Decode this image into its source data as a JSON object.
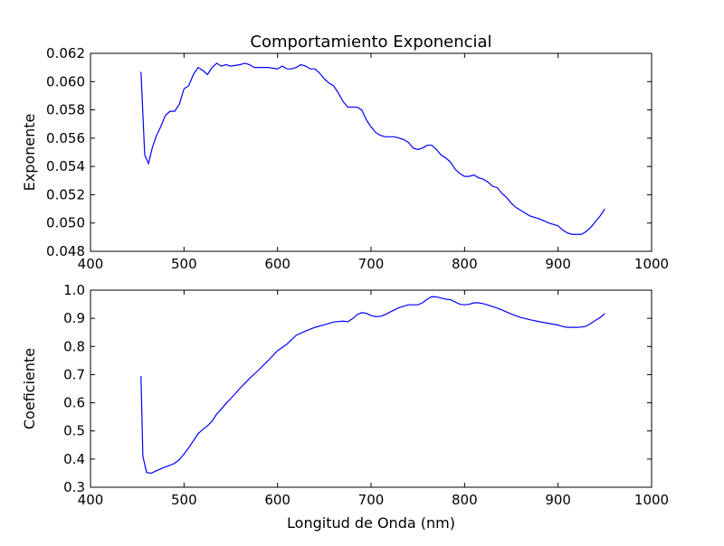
{
  "figure": {
    "title": "Comportamiento Exponencial"
  },
  "chart_data": [
    {
      "type": "line",
      "title": "Comportamiento Exponencial",
      "xlabel": "",
      "ylabel": "Exponente",
      "xlim": [
        400,
        1000
      ],
      "ylim": [
        0.048,
        0.062
      ],
      "xticks": [
        "400",
        "500",
        "600",
        "700",
        "800",
        "900",
        "1000"
      ],
      "yticks": [
        "0.048",
        "0.050",
        "0.052",
        "0.054",
        "0.056",
        "0.058",
        "0.060",
        "0.062"
      ],
      "grid": false,
      "color": "#0000ff",
      "series": [
        {
          "x": [
            454,
            458,
            462,
            466,
            470,
            475,
            480,
            485,
            490,
            495,
            500,
            505,
            510,
            515,
            520,
            525,
            530,
            535,
            540,
            545,
            550,
            560,
            565,
            570,
            575,
            580,
            590,
            600,
            605,
            610,
            615,
            620,
            625,
            630,
            635,
            640,
            645,
            650,
            655,
            660,
            665,
            670,
            675,
            680,
            685,
            690,
            695,
            700,
            705,
            710,
            715,
            720,
            725,
            730,
            735,
            740,
            745,
            750,
            755,
            760,
            765,
            770,
            775,
            780,
            785,
            790,
            795,
            800,
            805,
            810,
            815,
            820,
            825,
            830,
            835,
            840,
            845,
            850,
            855,
            860,
            870,
            880,
            890,
            900,
            905,
            910,
            915,
            920,
            925,
            930,
            935,
            940,
            945,
            950
          ],
          "values": [
            0.0607,
            0.0548,
            0.0542,
            0.0553,
            0.0561,
            0.0568,
            0.0576,
            0.0579,
            0.0579,
            0.0584,
            0.0595,
            0.0597,
            0.0605,
            0.061,
            0.0608,
            0.0605,
            0.061,
            0.0613,
            0.0611,
            0.0612,
            0.0611,
            0.0612,
            0.0613,
            0.0612,
            0.061,
            0.061,
            0.061,
            0.0609,
            0.0611,
            0.0609,
            0.0609,
            0.061,
            0.0612,
            0.0611,
            0.0609,
            0.0609,
            0.0606,
            0.0602,
            0.0599,
            0.0597,
            0.0592,
            0.0586,
            0.0582,
            0.0582,
            0.0582,
            0.058,
            0.0573,
            0.0568,
            0.0564,
            0.0562,
            0.0561,
            0.0561,
            0.0561,
            0.056,
            0.0559,
            0.0557,
            0.0553,
            0.0552,
            0.0553,
            0.0555,
            0.0555,
            0.0552,
            0.0548,
            0.0546,
            0.0543,
            0.0538,
            0.0535,
            0.0533,
            0.0533,
            0.0534,
            0.0532,
            0.0531,
            0.0529,
            0.0526,
            0.0525,
            0.0521,
            0.0518,
            0.0514,
            0.0511,
            0.0509,
            0.0505,
            0.0503,
            0.05,
            0.0498,
            0.0495,
            0.0493,
            0.0492,
            0.0492,
            0.0492,
            0.0494,
            0.0497,
            0.0501,
            0.0505,
            0.051
          ]
        }
      ]
    },
    {
      "type": "line",
      "title": "",
      "xlabel": "Longitud de Onda (nm)",
      "ylabel": "Coeficiente",
      "xlim": [
        400,
        1000
      ],
      "ylim": [
        0.3,
        1.0
      ],
      "xticks": [
        "400",
        "500",
        "600",
        "700",
        "800",
        "900",
        "1000"
      ],
      "yticks": [
        "0.3",
        "0.4",
        "0.5",
        "0.6",
        "0.7",
        "0.8",
        "0.9",
        "1.0"
      ],
      "grid": false,
      "color": "#0000ff",
      "series": [
        {
          "x": [
            454,
            456,
            460,
            465,
            470,
            475,
            480,
            485,
            490,
            495,
            500,
            505,
            510,
            515,
            520,
            525,
            530,
            535,
            540,
            545,
            550,
            560,
            570,
            580,
            590,
            600,
            610,
            620,
            630,
            640,
            650,
            660,
            670,
            675,
            680,
            685,
            690,
            695,
            700,
            705,
            710,
            715,
            720,
            725,
            730,
            740,
            750,
            755,
            760,
            765,
            770,
            775,
            780,
            785,
            790,
            795,
            800,
            805,
            810,
            815,
            820,
            830,
            840,
            850,
            860,
            870,
            880,
            890,
            900,
            905,
            910,
            915,
            920,
            925,
            930,
            935,
            940,
            945,
            950
          ],
          "values": [
            0.695,
            0.41,
            0.352,
            0.35,
            0.358,
            0.365,
            0.372,
            0.378,
            0.385,
            0.398,
            0.418,
            0.44,
            0.465,
            0.49,
            0.505,
            0.518,
            0.535,
            0.56,
            0.578,
            0.598,
            0.615,
            0.652,
            0.686,
            0.717,
            0.75,
            0.785,
            0.808,
            0.84,
            0.855,
            0.868,
            0.877,
            0.887,
            0.89,
            0.888,
            0.898,
            0.913,
            0.92,
            0.918,
            0.91,
            0.906,
            0.907,
            0.913,
            0.922,
            0.93,
            0.938,
            0.948,
            0.948,
            0.955,
            0.968,
            0.977,
            0.976,
            0.972,
            0.968,
            0.966,
            0.958,
            0.95,
            0.948,
            0.95,
            0.955,
            0.955,
            0.952,
            0.942,
            0.93,
            0.915,
            0.903,
            0.895,
            0.888,
            0.882,
            0.876,
            0.871,
            0.868,
            0.868,
            0.868,
            0.869,
            0.872,
            0.882,
            0.893,
            0.903,
            0.917
          ]
        }
      ]
    }
  ]
}
